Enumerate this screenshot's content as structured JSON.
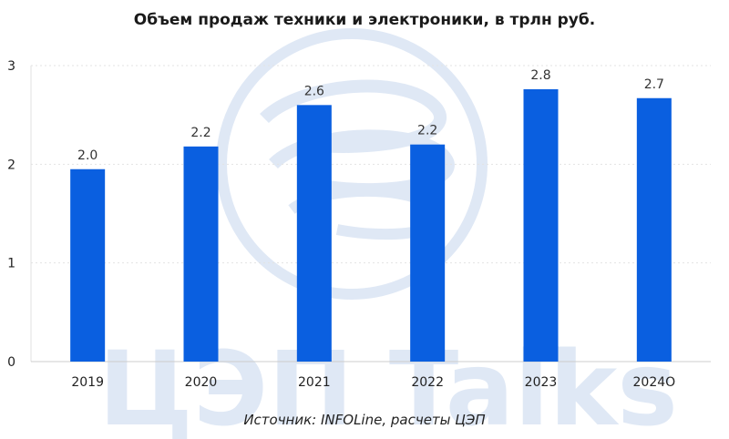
{
  "title": "Объем продаж техники и электроники, в трлн руб.",
  "source": "Источник: INFOLine, расчеты ЦЭП",
  "watermark": "ЦЭП Talks",
  "colors": {
    "bar": "#0a5fe0",
    "watermark": "#dfe8f5",
    "grid": "#e3e3e3"
  },
  "chart_data": {
    "type": "bar",
    "title": "Объем продаж техники и электроники, в трлн руб.",
    "xlabel": "",
    "ylabel": "",
    "categories": [
      "2019",
      "2020",
      "2021",
      "2022",
      "2023",
      "2024О"
    ],
    "values": [
      1.95,
      2.18,
      2.6,
      2.2,
      2.76,
      2.67
    ],
    "data_labels": [
      "2.0",
      "2.2",
      "2.6",
      "2.2",
      "2.8",
      "2.7"
    ],
    "yticks": [
      "0",
      "1",
      "2",
      "3"
    ],
    "ylim": [
      0,
      3
    ],
    "grid": true,
    "legend": "none"
  }
}
